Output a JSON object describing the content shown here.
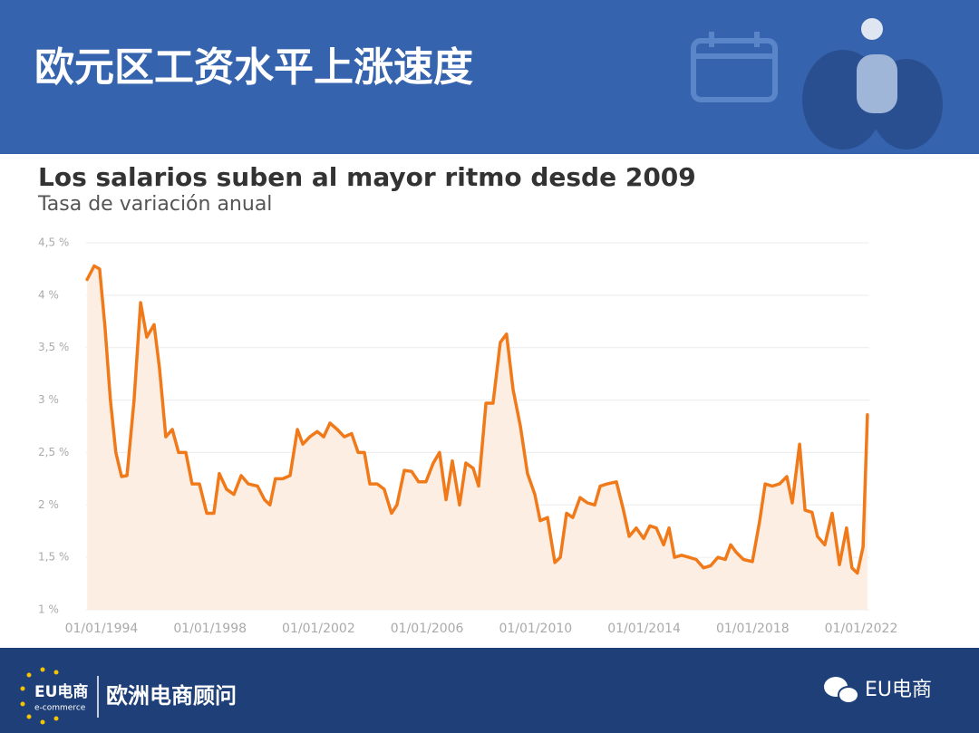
{
  "header": {
    "title": "欧元区工资水平上涨速度"
  },
  "footer": {
    "logo": "EU电商",
    "logo_sub": "e-commerce",
    "brand": "欧洲电商顾问",
    "account": "EU电商"
  },
  "chart_data": {
    "type": "line",
    "title": "Los salarios suben al mayor ritmo desde 2009",
    "subtitle": "Tasa de variación anual",
    "color": "#f07a1a",
    "fill_color": "#fdeee3",
    "grid": true,
    "xlim": [
      1993.4,
      2022.3
    ],
    "xticks": [
      {
        "value": 1994,
        "label": "01/01/1994"
      },
      {
        "value": 1998,
        "label": "01/01/1998"
      },
      {
        "value": 2002,
        "label": "01/01/2002"
      },
      {
        "value": 2006,
        "label": "01/01/2006"
      },
      {
        "value": 2010,
        "label": "01/01/2010"
      },
      {
        "value": 2014,
        "label": "01/01/2014"
      },
      {
        "value": 2018,
        "label": "01/01/2018"
      },
      {
        "value": 2022,
        "label": "01/01/2022"
      }
    ],
    "ylim": [
      1,
      4.5
    ],
    "yticks": [
      {
        "value": 1,
        "label": "1 %"
      },
      {
        "value": 1.5,
        "label": "1,5 %"
      },
      {
        "value": 2,
        "label": "2 %"
      },
      {
        "value": 2.5,
        "label": "2,5 %"
      },
      {
        "value": 3,
        "label": "3 %"
      },
      {
        "value": 3.5,
        "label": "3,5 %"
      },
      {
        "value": 4,
        "label": "4 %"
      },
      {
        "value": 4.5,
        "label": "4,5 %"
      }
    ],
    "x": [
      1993.47,
      1993.73,
      1993.93,
      1994.13,
      1994.33,
      1994.53,
      1994.74,
      1994.94,
      1995.2,
      1995.44,
      1995.67,
      1995.94,
      1996.14,
      1996.37,
      1996.61,
      1996.84,
      1997.11,
      1997.34,
      1997.61,
      1997.88,
      1998.14,
      1998.34,
      1998.61,
      1998.88,
      1999.15,
      1999.41,
      1999.75,
      2000.01,
      2000.21,
      2000.41,
      2000.68,
      2000.95,
      2001.22,
      2001.42,
      2001.68,
      2001.95,
      2002.19,
      2002.42,
      2002.69,
      2002.95,
      2003.22,
      2003.46,
      2003.69,
      2003.89,
      2004.16,
      2004.42,
      2004.69,
      2004.89,
      2005.16,
      2005.43,
      2005.69,
      2005.96,
      2006.23,
      2006.46,
      2006.7,
      2006.93,
      2007.2,
      2007.43,
      2007.7,
      2007.9,
      2008.17,
      2008.43,
      2008.7,
      2008.93,
      2009.17,
      2009.44,
      2009.7,
      2009.97,
      2010.17,
      2010.44,
      2010.71,
      2010.91,
      2011.14,
      2011.37,
      2011.64,
      2011.91,
      2012.18,
      2012.38,
      2012.64,
      2012.98,
      2013.24,
      2013.45,
      2013.71,
      2013.98,
      2014.21,
      2014.45,
      2014.72,
      2014.92,
      2015.12,
      2015.38,
      2015.65,
      2015.92,
      2016.19,
      2016.45,
      2016.72,
      2016.99,
      2017.19,
      2017.39,
      2017.66,
      2017.99,
      2018.26,
      2018.46,
      2018.72,
      2018.99,
      2019.26,
      2019.46,
      2019.73,
      2019.93,
      2020.19,
      2020.39,
      2020.66,
      2020.93,
      2021.2,
      2021.46,
      2021.66,
      2021.86,
      2022.07,
      2022.23
    ],
    "values": [
      4.15,
      4.28,
      4.25,
      3.7,
      3.0,
      2.5,
      2.27,
      2.28,
      3.0,
      3.93,
      3.6,
      3.72,
      3.3,
      2.65,
      2.72,
      2.5,
      2.5,
      2.2,
      2.2,
      1.92,
      1.92,
      2.3,
      2.15,
      2.1,
      2.28,
      2.2,
      2.18,
      2.05,
      2.0,
      2.25,
      2.25,
      2.28,
      2.72,
      2.58,
      2.65,
      2.7,
      2.65,
      2.78,
      2.72,
      2.65,
      2.68,
      2.5,
      2.5,
      2.2,
      2.2,
      2.15,
      1.92,
      2.0,
      2.33,
      2.32,
      2.22,
      2.22,
      2.4,
      2.5,
      2.05,
      2.42,
      2.0,
      2.4,
      2.35,
      2.18,
      2.97,
      2.97,
      3.55,
      3.63,
      3.1,
      2.75,
      2.3,
      2.1,
      1.85,
      1.88,
      1.45,
      1.5,
      1.92,
      1.88,
      2.07,
      2.02,
      2.0,
      2.18,
      2.2,
      2.22,
      1.95,
      1.7,
      1.78,
      1.68,
      1.8,
      1.78,
      1.62,
      1.78,
      1.5,
      1.52,
      1.5,
      1.48,
      1.4,
      1.42,
      1.5,
      1.48,
      1.62,
      1.55,
      1.48,
      1.46,
      1.85,
      2.2,
      2.18,
      2.2,
      2.27,
      2.02,
      2.58,
      1.95,
      1.93,
      1.7,
      1.62,
      1.92,
      1.43,
      1.78,
      1.4,
      1.35,
      1.6,
      2.86
    ]
  }
}
